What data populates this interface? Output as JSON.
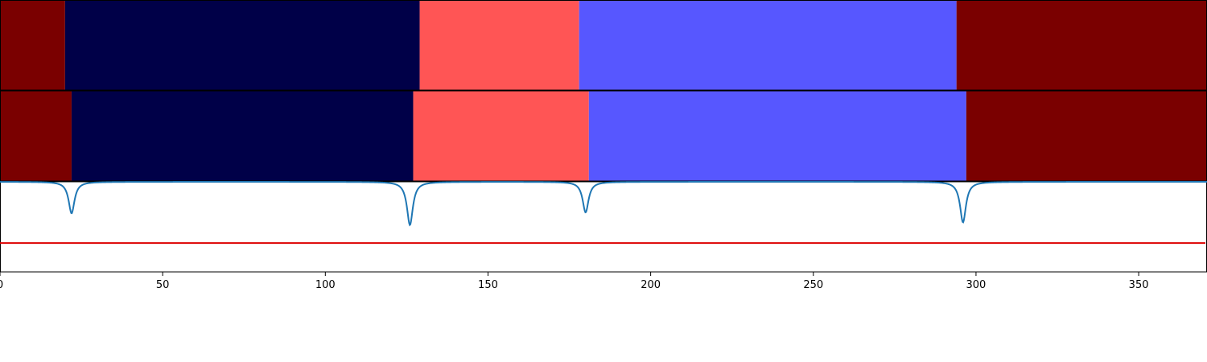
{
  "chart_data": {
    "type": "segmentation-comparison",
    "x_range": [
      0,
      371
    ],
    "x_ticks": [
      "0",
      "50",
      "100",
      "150",
      "200",
      "250",
      "300",
      "350"
    ],
    "x_tick_values": [
      0,
      50,
      100,
      150,
      200,
      250,
      300,
      350
    ],
    "grid": false,
    "legend": "none",
    "palette": {
      "dark_red": "#7a0000",
      "navy": "#000048",
      "salmon": "#ff5555",
      "blue": "#5757ff",
      "line": "#1f77b4",
      "threshold": "#dd0000"
    },
    "rows": [
      {
        "name": "row-1",
        "segments": [
          {
            "start": 0,
            "end": 20,
            "color": "#7a0000"
          },
          {
            "start": 20,
            "end": 129,
            "color": "#000048"
          },
          {
            "start": 129,
            "end": 178,
            "color": "#ff5555"
          },
          {
            "start": 178,
            "end": 294,
            "color": "#5757ff"
          },
          {
            "start": 294,
            "end": 371,
            "color": "#7a0000"
          }
        ]
      },
      {
        "name": "row-2",
        "segments": [
          {
            "start": 0,
            "end": 22,
            "color": "#7a0000"
          },
          {
            "start": 22,
            "end": 127,
            "color": "#000048"
          },
          {
            "start": 127,
            "end": 181,
            "color": "#ff5555"
          },
          {
            "start": 181,
            "end": 297,
            "color": "#5757ff"
          },
          {
            "start": 297,
            "end": 371,
            "color": "#7a0000"
          }
        ]
      }
    ],
    "signal": {
      "baseline": 1.0,
      "y_range": [
        0,
        1.0
      ],
      "threshold": 0.32,
      "dips": [
        {
          "x": 22,
          "depth": 0.35
        },
        {
          "x": 126,
          "depth": 0.48
        },
        {
          "x": 180,
          "depth": 0.34
        },
        {
          "x": 296,
          "depth": 0.45
        }
      ]
    }
  }
}
